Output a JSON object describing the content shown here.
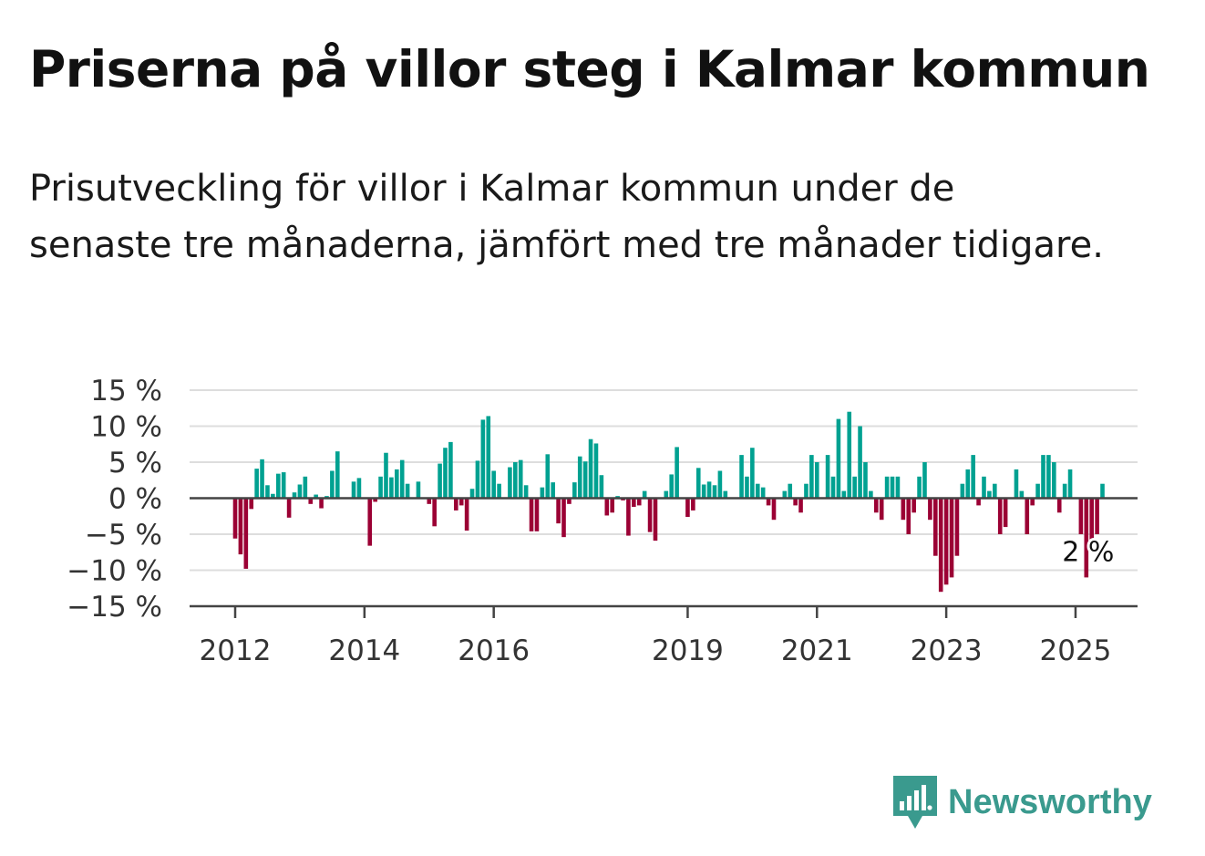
{
  "title": "Priserna på villor steg i Kalmar kommun",
  "subtitle": "Prisutveckling för villor i Kalmar kommun under de senaste tre månaderna, jämfört med tre månader tidigare.",
  "brand": {
    "name": "Newsworthy",
    "icon": "newsworthy-logo-icon"
  },
  "colors": {
    "positive": "#00a191",
    "negative": "#9b0034",
    "grid": "#dddddd",
    "axis": "#444444",
    "brand": "#3a9a8e"
  },
  "chart_data": {
    "type": "bar",
    "title": "",
    "xlabel": "",
    "ylabel": "",
    "ylim": [
      -15,
      15
    ],
    "yticks": [
      15,
      10,
      5,
      0,
      -5,
      -10,
      -15
    ],
    "ytick_labels": [
      "15 %",
      "10 %",
      "5 %",
      "0 %",
      "−5 %",
      "−10 %",
      "−15 %"
    ],
    "x_start": "2012-01",
    "x_interval": "month",
    "xticks": [
      {
        "label": "2012",
        "date": "2012-01"
      },
      {
        "label": "2014",
        "date": "2014-01"
      },
      {
        "label": "2016",
        "date": "2016-01"
      },
      {
        "label": "2019",
        "date": "2019-01"
      },
      {
        "label": "2021",
        "date": "2021-01"
      },
      {
        "label": "2023",
        "date": "2023-01"
      },
      {
        "label": "2025",
        "date": "2025-01"
      }
    ],
    "grid": true,
    "annotation": {
      "text": "2 %",
      "date": "2025-03"
    },
    "values": [
      -5.6,
      -7.8,
      -9.8,
      -1.5,
      4.1,
      5.4,
      1.8,
      0.6,
      3.4,
      3.6,
      -2.7,
      0.8,
      1.9,
      3.0,
      -0.8,
      0.5,
      -1.4,
      0.3,
      3.8,
      6.5,
      0.0,
      0.0,
      2.3,
      2.8,
      0.0,
      -6.6,
      -0.5,
      3.0,
      6.3,
      2.9,
      4.0,
      5.3,
      2.0,
      0.0,
      2.3,
      0.0,
      -0.8,
      -3.9,
      4.8,
      7.0,
      7.8,
      -1.7,
      -1.0,
      -4.5,
      1.3,
      5.2,
      10.9,
      11.4,
      3.8,
      2.0,
      0.0,
      4.3,
      5.0,
      5.3,
      1.8,
      -4.6,
      -4.6,
      1.5,
      6.1,
      2.2,
      -3.5,
      -5.4,
      -0.8,
      2.2,
      5.8,
      5.1,
      8.2,
      7.6,
      3.2,
      -2.4,
      -2.0,
      0.3,
      -0.3,
      -5.2,
      -1.2,
      -1.0,
      1.0,
      -4.7,
      -5.9,
      0.0,
      1.0,
      3.3,
      7.1,
      0.0,
      -2.6,
      -1.7,
      4.2,
      1.9,
      2.3,
      1.8,
      3.8,
      1.0,
      0.0,
      0.0,
      6.0,
      3.0,
      7.0,
      2.0,
      1.5,
      -1.0,
      -3.0,
      0.0,
      1.0,
      2.0,
      -1.0,
      -2.0,
      2.0,
      6.0,
      5.0,
      0.0,
      6.0,
      3.0,
      11.0,
      1.0,
      12.0,
      3.0,
      10.0,
      5.0,
      1.0,
      -2.0,
      -3.0,
      3.0,
      3.0,
      3.0,
      -3.0,
      -5.0,
      -2.0,
      3.0,
      5.0,
      -3.0,
      -8.0,
      -13.0,
      -12.0,
      -11.0,
      -8.0,
      2.0,
      4.0,
      6.0,
      -1.0,
      3.0,
      1.0,
      2.0,
      -5.0,
      -4.0,
      0.0,
      4.0,
      1.0,
      -5.0,
      -1.0,
      2.0,
      6.0,
      6.0,
      5.0,
      -2.0,
      2.0,
      4.0,
      0.0,
      -5.0,
      -11.0,
      -7.0,
      -5.0,
      2.0
    ]
  }
}
